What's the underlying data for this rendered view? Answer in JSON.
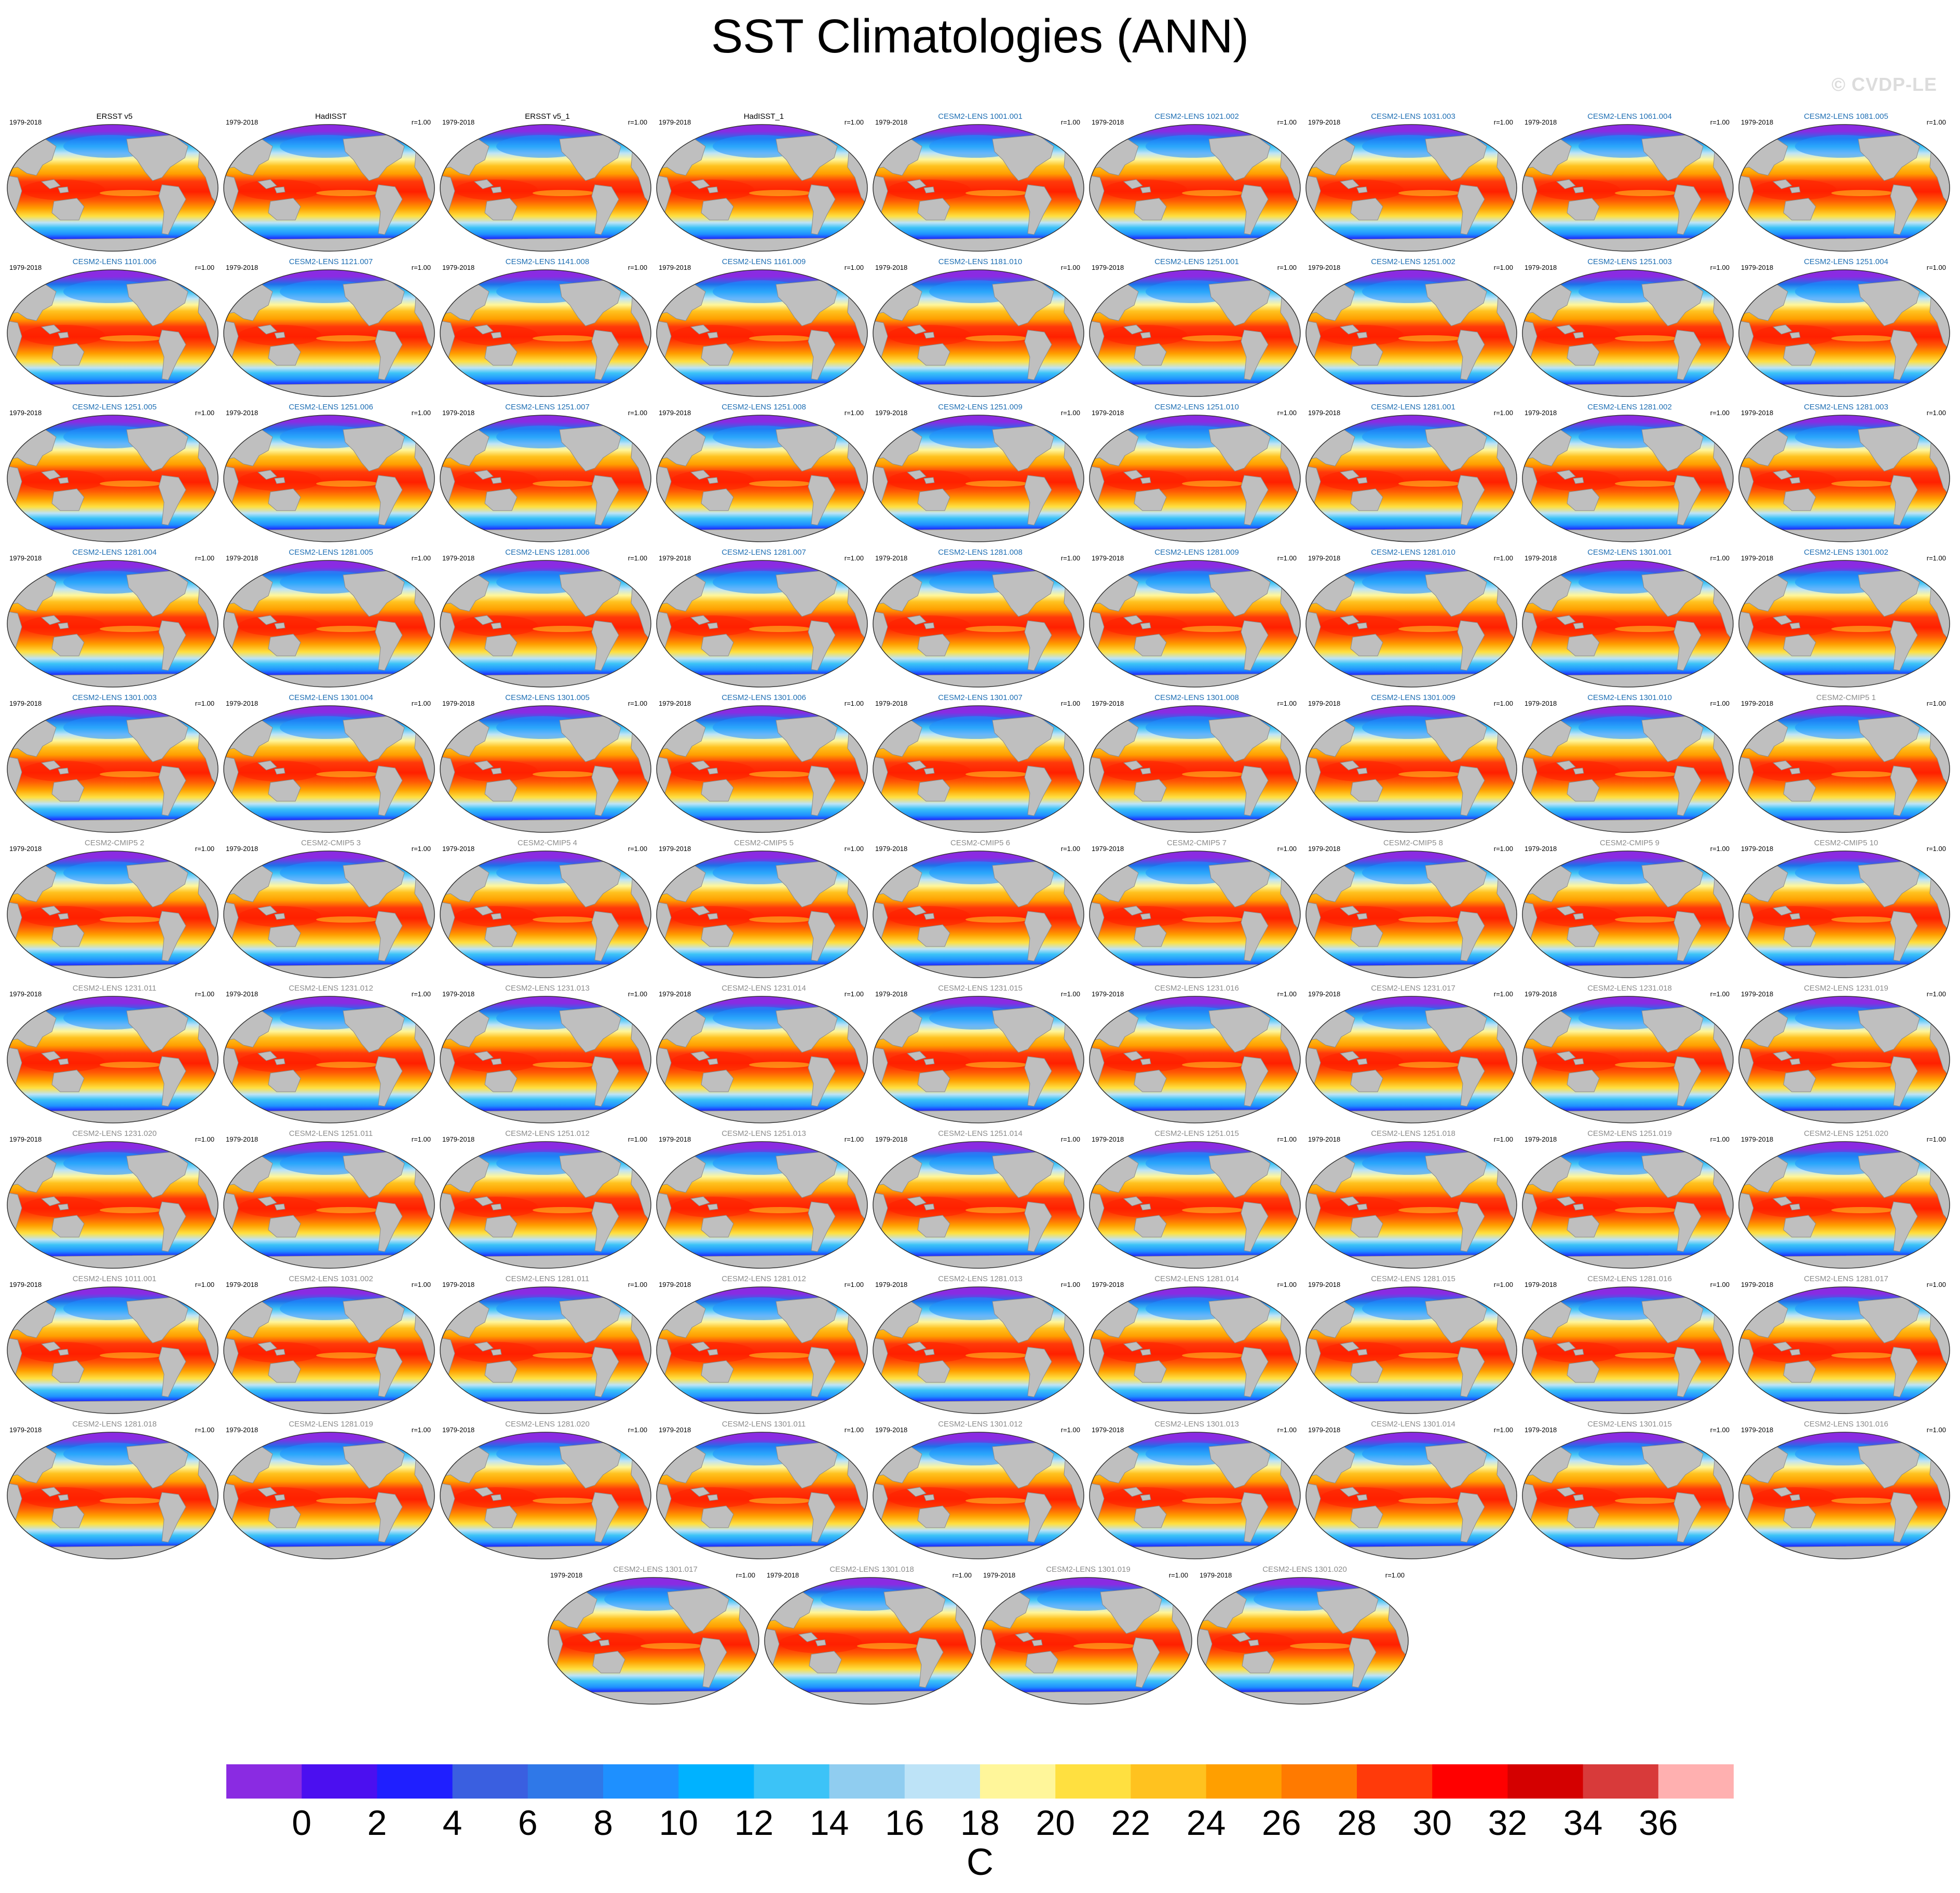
{
  "title": "SST Climatologies (ANN)",
  "watermark": "© CVDP-LE",
  "chart_data": {
    "type": "heatmap",
    "title": "SST Climatologies (ANN)",
    "variable": "SST",
    "season": "ANN",
    "projection": "global map (Robinson-like), Pacific-centered",
    "colorbar": {
      "unit": "C",
      "levels": [
        0,
        2,
        4,
        6,
        8,
        10,
        12,
        14,
        16,
        18,
        20,
        22,
        24,
        26,
        28,
        30,
        32,
        34,
        36
      ],
      "tick_labels": [
        "0",
        "2",
        "4",
        "6",
        "8",
        "10",
        "12",
        "14",
        "16",
        "18",
        "20",
        "22",
        "24",
        "26",
        "28",
        "30",
        "32",
        "34",
        "36"
      ],
      "colors": [
        "#8a2be2",
        "#4b0ff0",
        "#1f1fff",
        "#3a5fe0",
        "#2f78e8",
        "#1e90ff",
        "#00b2ff",
        "#3cc3f7",
        "#90cdf0",
        "#bde3f7",
        "#fff69a",
        "#ffe040",
        "#ffc21f",
        "#ff9f00",
        "#ff7a00",
        "#ff3a0a",
        "#ff0000",
        "#d40000",
        "#d83a3a",
        "#ffb0b0"
      ]
    },
    "panel_year_label": "1979-2018",
    "panel_r_label": "r=1.00",
    "panels": [
      {
        "name": "ERSST v5",
        "group": "obs"
      },
      {
        "name": "HadISST",
        "group": "obs"
      },
      {
        "name": "ERSST v5_1",
        "group": "obs"
      },
      {
        "name": "HadISST_1",
        "group": "obs"
      },
      {
        "name": "CESM2-LENS 1001.001",
        "group": "lens"
      },
      {
        "name": "CESM2-LENS 1021.002",
        "group": "lens"
      },
      {
        "name": "CESM2-LENS 1031.003",
        "group": "lens"
      },
      {
        "name": "CESM2-LENS 1061.004",
        "group": "lens"
      },
      {
        "name": "CESM2-LENS 1081.005",
        "group": "lens"
      },
      {
        "name": "CESM2-LENS 1101.006",
        "group": "lens"
      },
      {
        "name": "CESM2-LENS 1121.007",
        "group": "lens"
      },
      {
        "name": "CESM2-LENS 1141.008",
        "group": "lens"
      },
      {
        "name": "CESM2-LENS 1161.009",
        "group": "lens"
      },
      {
        "name": "CESM2-LENS 1181.010",
        "group": "lens"
      },
      {
        "name": "CESM2-LENS 1251.001",
        "group": "lens"
      },
      {
        "name": "CESM2-LENS 1251.002",
        "group": "lens"
      },
      {
        "name": "CESM2-LENS 1251.003",
        "group": "lens"
      },
      {
        "name": "CESM2-LENS 1251.004",
        "group": "lens"
      },
      {
        "name": "CESM2-LENS 1251.005",
        "group": "lens"
      },
      {
        "name": "CESM2-LENS 1251.006",
        "group": "lens"
      },
      {
        "name": "CESM2-LENS 1251.007",
        "group": "lens"
      },
      {
        "name": "CESM2-LENS 1251.008",
        "group": "lens"
      },
      {
        "name": "CESM2-LENS 1251.009",
        "group": "lens"
      },
      {
        "name": "CESM2-LENS 1251.010",
        "group": "lens"
      },
      {
        "name": "CESM2-LENS 1281.001",
        "group": "lens"
      },
      {
        "name": "CESM2-LENS 1281.002",
        "group": "lens"
      },
      {
        "name": "CESM2-LENS 1281.003",
        "group": "lens"
      },
      {
        "name": "CESM2-LENS 1281.004",
        "group": "lens"
      },
      {
        "name": "CESM2-LENS 1281.005",
        "group": "lens"
      },
      {
        "name": "CESM2-LENS 1281.006",
        "group": "lens"
      },
      {
        "name": "CESM2-LENS 1281.007",
        "group": "lens"
      },
      {
        "name": "CESM2-LENS 1281.008",
        "group": "lens"
      },
      {
        "name": "CESM2-LENS 1281.009",
        "group": "lens"
      },
      {
        "name": "CESM2-LENS 1281.010",
        "group": "lens"
      },
      {
        "name": "CESM2-LENS 1301.001",
        "group": "lens"
      },
      {
        "name": "CESM2-LENS 1301.002",
        "group": "lens"
      },
      {
        "name": "CESM2-LENS 1301.003",
        "group": "lens"
      },
      {
        "name": "CESM2-LENS 1301.004",
        "group": "lens"
      },
      {
        "name": "CESM2-LENS 1301.005",
        "group": "lens"
      },
      {
        "name": "CESM2-LENS 1301.006",
        "group": "lens"
      },
      {
        "name": "CESM2-LENS 1301.007",
        "group": "lens"
      },
      {
        "name": "CESM2-LENS 1301.008",
        "group": "lens"
      },
      {
        "name": "CESM2-LENS 1301.009",
        "group": "lens"
      },
      {
        "name": "CESM2-LENS 1301.010",
        "group": "lens"
      },
      {
        "name": "CESM2-CMIP5 1",
        "group": "other"
      },
      {
        "name": "CESM2-CMIP5 2",
        "group": "other"
      },
      {
        "name": "CESM2-CMIP5 3",
        "group": "other"
      },
      {
        "name": "CESM2-CMIP5 4",
        "group": "other"
      },
      {
        "name": "CESM2-CMIP5 5",
        "group": "other"
      },
      {
        "name": "CESM2-CMIP5 6",
        "group": "other"
      },
      {
        "name": "CESM2-CMIP5 7",
        "group": "other"
      },
      {
        "name": "CESM2-CMIP5 8",
        "group": "other"
      },
      {
        "name": "CESM2-CMIP5 9",
        "group": "other"
      },
      {
        "name": "CESM2-CMIP5 10",
        "group": "other"
      },
      {
        "name": "CESM2-LENS 1231.011",
        "group": "other"
      },
      {
        "name": "CESM2-LENS 1231.012",
        "group": "other"
      },
      {
        "name": "CESM2-LENS 1231.013",
        "group": "other"
      },
      {
        "name": "CESM2-LENS 1231.014",
        "group": "other"
      },
      {
        "name": "CESM2-LENS 1231.015",
        "group": "other"
      },
      {
        "name": "CESM2-LENS 1231.016",
        "group": "other"
      },
      {
        "name": "CESM2-LENS 1231.017",
        "group": "other"
      },
      {
        "name": "CESM2-LENS 1231.018",
        "group": "other"
      },
      {
        "name": "CESM2-LENS 1231.019",
        "group": "other"
      },
      {
        "name": "CESM2-LENS 1231.020",
        "group": "other"
      },
      {
        "name": "CESM2-LENS 1251.011",
        "group": "other"
      },
      {
        "name": "CESM2-LENS 1251.012",
        "group": "other"
      },
      {
        "name": "CESM2-LENS 1251.013",
        "group": "other"
      },
      {
        "name": "CESM2-LENS 1251.014",
        "group": "other"
      },
      {
        "name": "CESM2-LENS 1251.015",
        "group": "other"
      },
      {
        "name": "CESM2-LENS 1251.018",
        "group": "other"
      },
      {
        "name": "CESM2-LENS 1251.019",
        "group": "other"
      },
      {
        "name": "CESM2-LENS 1251.020",
        "group": "other"
      },
      {
        "name": "CESM2-LENS 1011.001",
        "group": "other"
      },
      {
        "name": "CESM2-LENS 1031.002",
        "group": "other"
      },
      {
        "name": "CESM2-LENS 1281.011",
        "group": "other"
      },
      {
        "name": "CESM2-LENS 1281.012",
        "group": "other"
      },
      {
        "name": "CESM2-LENS 1281.013",
        "group": "other"
      },
      {
        "name": "CESM2-LENS 1281.014",
        "group": "other"
      },
      {
        "name": "CESM2-LENS 1281.015",
        "group": "other"
      },
      {
        "name": "CESM2-LENS 1281.016",
        "group": "other"
      },
      {
        "name": "CESM2-LENS 1281.017",
        "group": "other"
      },
      {
        "name": "CESM2-LENS 1281.018",
        "group": "other"
      },
      {
        "name": "CESM2-LENS 1281.019",
        "group": "other"
      },
      {
        "name": "CESM2-LENS 1281.020",
        "group": "other"
      },
      {
        "name": "CESM2-LENS 1301.011",
        "group": "other"
      },
      {
        "name": "CESM2-LENS 1301.012",
        "group": "other"
      },
      {
        "name": "CESM2-LENS 1301.013",
        "group": "other"
      },
      {
        "name": "CESM2-LENS 1301.014",
        "group": "other"
      },
      {
        "name": "CESM2-LENS 1301.015",
        "group": "other"
      },
      {
        "name": "CESM2-LENS 1301.016",
        "group": "other"
      },
      {
        "name": "CESM2-LENS 1301.017",
        "group": "other"
      },
      {
        "name": "CESM2-LENS 1301.018",
        "group": "other"
      },
      {
        "name": "CESM2-LENS 1301.019",
        "group": "other"
      },
      {
        "name": "CESM2-LENS 1301.020",
        "group": "other"
      }
    ],
    "group_colors": {
      "obs": "#000000",
      "lens": "#1f6fb4",
      "other": "#8c8c8c"
    },
    "land_color": "#bfbfbf"
  }
}
